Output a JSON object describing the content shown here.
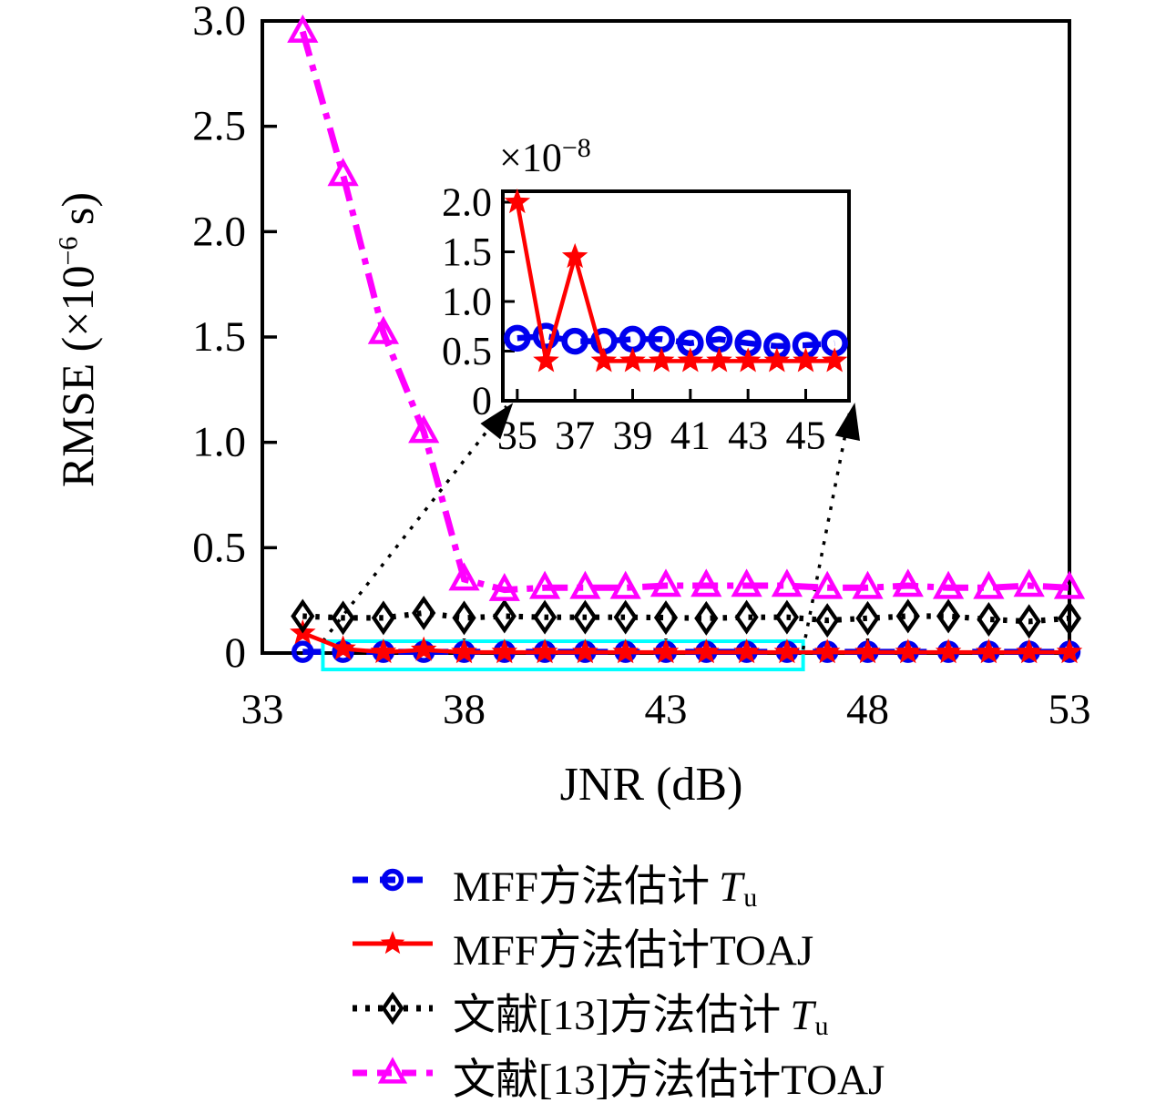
{
  "figure": {
    "y_axis_title": {
      "prefix": "RMSE (×10",
      "exp": "−6",
      "suffix": " s)"
    },
    "x_axis_title": "JNR (dB)",
    "inset_multiplier": {
      "prefix": "×10",
      "exp": "−8"
    }
  },
  "legend": {
    "items": [
      {
        "prefix": "MFF方法估计",
        "var": "T",
        "sub": "u"
      },
      {
        "prefix": "MFF方法估计TOAJ",
        "var": "",
        "sub": ""
      },
      {
        "prefix": "文献[13]方法估计",
        "var": "T",
        "sub": "u"
      },
      {
        "prefix": "文献[13]方法估计TOAJ",
        "var": "",
        "sub": ""
      }
    ]
  },
  "chart_data": [
    {
      "type": "line",
      "title": "",
      "xlabel": "JNR (dB)",
      "ylabel": "RMSE (×10⁻⁶ s)",
      "x": [
        34,
        35,
        36,
        37,
        38,
        39,
        40,
        41,
        42,
        43,
        44,
        45,
        46,
        47,
        48,
        49,
        50,
        51,
        52,
        53
      ],
      "xlim": [
        33,
        53
      ],
      "ylim": [
        0,
        3
      ],
      "x_ticks": [
        33,
        38,
        43,
        48,
        53
      ],
      "x_tick_labels": [
        "33",
        "38",
        "43",
        "48",
        "53"
      ],
      "y_ticks": [
        0,
        0.5,
        1.0,
        1.5,
        2.0,
        2.5,
        3.0
      ],
      "y_tick_labels": [
        "0",
        "0.5",
        "1.0",
        "1.5",
        "2.0",
        "2.5",
        "3.0"
      ],
      "grid": false,
      "legend_position": "below",
      "series": [
        {
          "name": "MFF方法估计Tu",
          "color": "#0000ee",
          "marker": "circle",
          "line": "dashed",
          "values": [
            0.006,
            0.006,
            0.006,
            0.006,
            0.006,
            0.006,
            0.006,
            0.006,
            0.006,
            0.006,
            0.006,
            0.006,
            0.006,
            0.006,
            0.006,
            0.006,
            0.006,
            0.006,
            0.006,
            0.006
          ]
        },
        {
          "name": "MFF方法估计TOAJ",
          "color": "#ff0000",
          "marker": "star",
          "line": "solid",
          "values": [
            0.095,
            0.02,
            0.0045,
            0.0145,
            0.004,
            0.004,
            0.004,
            0.004,
            0.004,
            0.004,
            0.004,
            0.004,
            0.004,
            0.004,
            0.004,
            0.004,
            0.004,
            0.004,
            0.004,
            0.004
          ]
        },
        {
          "name": "文献[13]方法估计Tu",
          "color": "#000000",
          "marker": "diamond",
          "line": "dotted",
          "values": [
            0.175,
            0.167,
            0.167,
            0.19,
            0.167,
            0.175,
            0.17,
            0.17,
            0.17,
            0.168,
            0.165,
            0.17,
            0.17,
            0.155,
            0.165,
            0.175,
            0.175,
            0.16,
            0.15,
            0.165
          ]
        },
        {
          "name": "文献[13]方法估计TOAJ",
          "color": "#ff00ff",
          "marker": "triangle",
          "line": "dashdot",
          "values": [
            2.95,
            2.27,
            1.52,
            1.05,
            0.35,
            0.3,
            0.31,
            0.31,
            0.31,
            0.32,
            0.32,
            0.32,
            0.32,
            0.31,
            0.31,
            0.32,
            0.31,
            0.31,
            0.32,
            0.31
          ]
        }
      ],
      "zoom_region": {
        "x0": 34.5,
        "x1": 46.4,
        "y0": -0.078,
        "y1": 0.056,
        "color": "#00ffff"
      }
    },
    {
      "type": "line",
      "title": "inset zoom (×10⁻⁸)",
      "multiplier": "×10⁻⁸",
      "x": [
        35,
        36,
        37,
        38,
        39,
        40,
        41,
        42,
        43,
        44,
        45,
        46
      ],
      "xlim": [
        34.5,
        46.5
      ],
      "ylim": [
        0,
        2.11
      ],
      "x_ticks": [
        35,
        37,
        39,
        41,
        43,
        45
      ],
      "x_tick_labels": [
        "35",
        "37",
        "39",
        "41",
        "43",
        "45"
      ],
      "y_ticks": [
        0,
        0.5,
        1.0,
        1.5,
        2.0
      ],
      "y_tick_labels": [
        "0",
        "0.5",
        "1.0",
        "1.5",
        "2.0"
      ],
      "grid": false,
      "series": [
        {
          "name": "MFF方法估计Tu",
          "color": "#0000ee",
          "marker": "circle",
          "line": "dashed",
          "values": [
            0.63,
            0.65,
            0.6,
            0.6,
            0.62,
            0.62,
            0.58,
            0.62,
            0.58,
            0.55,
            0.56,
            0.58
          ]
        },
        {
          "name": "MFF方法估计TOAJ",
          "color": "#ff0000",
          "marker": "star",
          "line": "solid",
          "values": [
            2.0,
            0.4,
            1.45,
            0.4,
            0.4,
            0.4,
            0.4,
            0.4,
            0.4,
            0.4,
            0.4,
            0.4
          ]
        }
      ]
    }
  ]
}
